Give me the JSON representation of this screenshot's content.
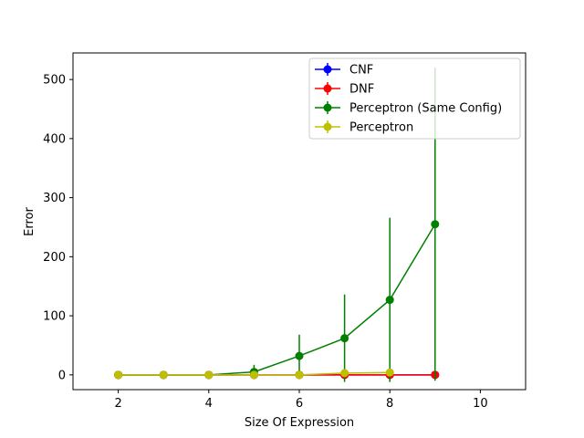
{
  "chart_data": {
    "type": "line",
    "title": "",
    "xlabel": "Size Of Expression",
    "ylabel": "Error",
    "xlim": [
      1,
      11
    ],
    "ylim": [
      -25,
      545
    ],
    "xticks": [
      2,
      4,
      6,
      8,
      10
    ],
    "yticks": [
      0,
      100,
      200,
      300,
      400,
      500
    ],
    "grid": false,
    "legend_position": "top-right",
    "series": [
      {
        "name": "CNF",
        "color": "#0000ff",
        "marker": "circle",
        "x": [
          2,
          3,
          4,
          5,
          6,
          7,
          8,
          9
        ],
        "y": [
          0,
          0,
          0,
          0,
          0,
          0,
          0,
          0
        ],
        "yerr": [
          0,
          0,
          0,
          0,
          0,
          0,
          0,
          0
        ]
      },
      {
        "name": "DNF",
        "color": "#ff0000",
        "marker": "circle",
        "x": [
          2,
          3,
          4,
          5,
          6,
          7,
          8,
          9
        ],
        "y": [
          0,
          0,
          0,
          0,
          0,
          0,
          0,
          0
        ],
        "yerr": [
          0,
          0,
          0,
          0,
          0,
          0,
          0,
          0
        ]
      },
      {
        "name": "Perceptron (Same Config)",
        "color": "#008000",
        "marker": "circle",
        "x": [
          2,
          3,
          4,
          5,
          6,
          7,
          8,
          9
        ],
        "y": [
          0,
          0,
          0,
          5,
          32,
          62,
          127,
          255
        ],
        "yerr": [
          0,
          0,
          0,
          12,
          36,
          74,
          139,
          265
        ]
      },
      {
        "name": "Perceptron",
        "color": "#bfbf00",
        "marker": "circle",
        "x": [
          2,
          3,
          4,
          5,
          6,
          7,
          8
        ],
        "y": [
          0,
          0,
          0,
          0,
          0,
          3,
          4
        ],
        "yerr": [
          0,
          0,
          0,
          0,
          0,
          0,
          0
        ]
      }
    ]
  }
}
